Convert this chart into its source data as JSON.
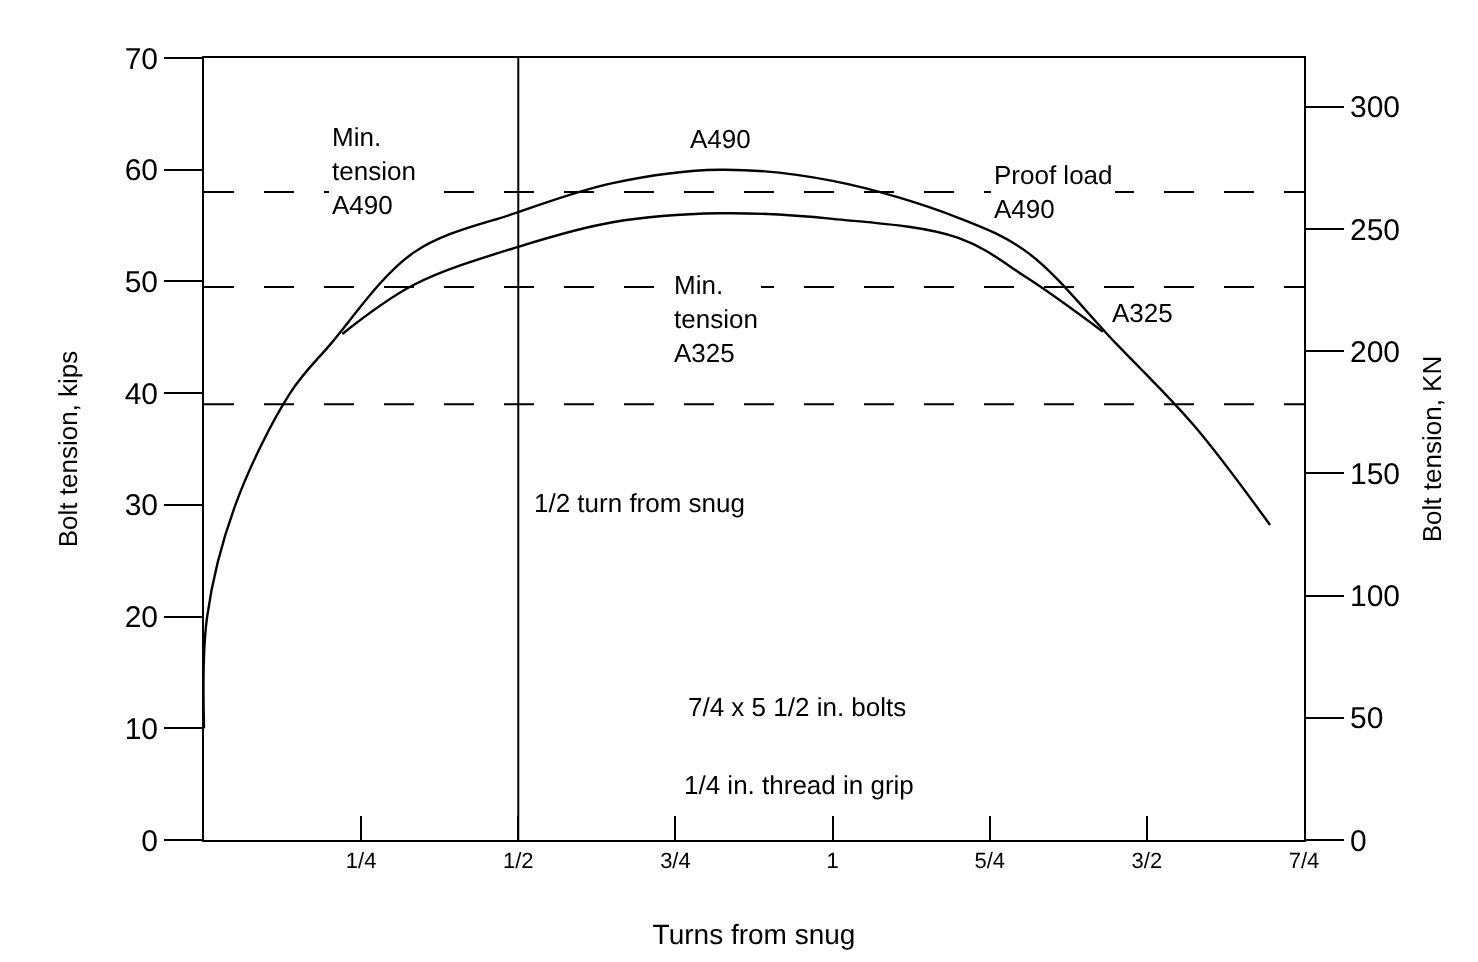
{
  "chart_data": {
    "type": "line",
    "xlabel": "Turns from snug",
    "ylabel": "Bolt tension, kips",
    "y2label": "Bolt tension, KN",
    "xlim": [
      0,
      1.75
    ],
    "xticks": [
      {
        "value": 0.25,
        "label": "1/4"
      },
      {
        "value": 0.5,
        "label": "1/2"
      },
      {
        "value": 0.75,
        "label": "3/4"
      },
      {
        "value": 1,
        "label": "1"
      },
      {
        "value": 1.25,
        "label": "5/4"
      },
      {
        "value": 1.5,
        "label": "3/2"
      },
      {
        "value": 1.75,
        "label": "7/4"
      }
    ],
    "ylim": [
      0,
      70
    ],
    "yticks": [
      0,
      10,
      20,
      30,
      40,
      50,
      60,
      70
    ],
    "y2lim": [
      0,
      320
    ],
    "y2ticks": [
      0,
      50,
      100,
      150,
      200,
      250,
      300
    ],
    "series": [
      {
        "name": "A490",
        "color": "#000000",
        "x": [
          0,
          0.005,
          0.05,
          0.137,
          0.2,
          0.334,
          0.5,
          0.65,
          0.82,
          1.0,
          1.2,
          1.31,
          1.45,
          1.575,
          1.696
        ],
        "values": [
          10,
          20,
          30,
          40,
          44.3,
          52.6,
          56.2,
          58.8,
          60.0,
          59.0,
          55.7,
          52.6,
          44.5,
          37.1,
          28.2
        ]
      },
      {
        "name": "A325",
        "color": "#000000",
        "x": [
          0.22,
          0.334,
          0.5,
          0.65,
          0.82,
          1.0,
          1.2,
          1.31,
          1.43
        ],
        "values": [
          45.3,
          49.7,
          53.1,
          55.3,
          56.1,
          55.6,
          53.9,
          50.3,
          45.5
        ]
      }
    ],
    "ref_lines": [
      {
        "axis": "y",
        "value": 58,
        "label": "Proof load\nA490",
        "line_style": "dashed",
        "color": "#000000"
      },
      {
        "axis": "y",
        "value": 49.5,
        "label": "Min.\ntension\nA490",
        "line_style": "dashed",
        "color": "#000000"
      },
      {
        "axis": "y",
        "value": 39,
        "label": "Min.\ntension\nA325",
        "line_style": "dashed",
        "color": "#000000"
      },
      {
        "axis": "x",
        "value": 0.5,
        "label": "1/2 turn from snug",
        "line_style": "solid",
        "color": "#000000"
      }
    ],
    "annotations": [
      "7/4 x 5 1/2 in. bolts",
      "1/4 in. thread in grip"
    ],
    "grid": false,
    "legend": false,
    "marker": "none",
    "line_style": "solid"
  }
}
